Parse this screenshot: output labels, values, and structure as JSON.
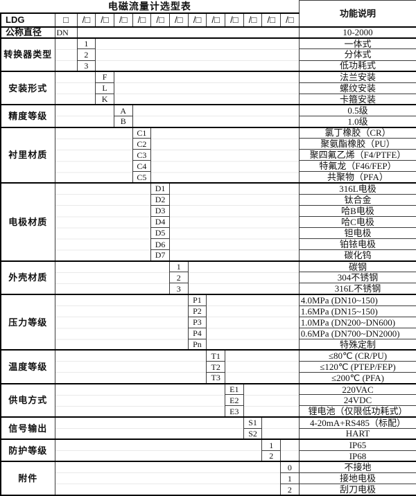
{
  "title": "电磁流量计选型表",
  "function_header": "功能说明",
  "model_row": {
    "label": "LDG",
    "first_box": "□",
    "slot": "/□"
  },
  "colors": {
    "border": "#000000",
    "background": "#ffffff",
    "text": "#111111"
  },
  "sections": [
    {
      "label": "公称直径",
      "code": "DN",
      "value": "10-2000"
    },
    {
      "label": "转换器类型",
      "rows": [
        {
          "code": "1",
          "value": "一体式"
        },
        {
          "code": "2",
          "value": "分体式"
        },
        {
          "code": "3",
          "value": "低功耗式"
        }
      ]
    },
    {
      "label": "安装形式",
      "rows": [
        {
          "code": "F",
          "value": "法兰安装"
        },
        {
          "code": "L",
          "value": "螺纹安装"
        },
        {
          "code": "K",
          "value": "卡箍安装"
        }
      ]
    },
    {
      "label": "精度等级",
      "rows": [
        {
          "code": "A",
          "value": "0.5级"
        },
        {
          "code": "B",
          "value": "1.0级"
        }
      ]
    },
    {
      "label": "衬里材质",
      "rows": [
        {
          "code": "C1",
          "value": "氯丁橡胶（CR）"
        },
        {
          "code": "C2",
          "value": "聚氨酯橡胶（PU）"
        },
        {
          "code": "C3",
          "value": "聚四氟乙烯（F4/PTFE）"
        },
        {
          "code": "C4",
          "value": "特氟龙（F46/FEP）"
        },
        {
          "code": "C5",
          "value": "共聚物（PFA）"
        }
      ]
    },
    {
      "label": "电极材质",
      "rows": [
        {
          "code": "D1",
          "value": "316L电极"
        },
        {
          "code": "D2",
          "value": "钛合金"
        },
        {
          "code": "D3",
          "value": "哈B电极"
        },
        {
          "code": "D4",
          "value": "哈C电极"
        },
        {
          "code": "D5",
          "value": "钽电极"
        },
        {
          "code": "D6",
          "value": "铂铱电极"
        },
        {
          "code": "D7",
          "value": "碳化钨"
        }
      ]
    },
    {
      "label": "外壳材质",
      "rows": [
        {
          "code": "1",
          "value": "碳钢"
        },
        {
          "code": "2",
          "value": "304不锈钢"
        },
        {
          "code": "3",
          "value": "316L不锈钢"
        }
      ]
    },
    {
      "label": "压力等级",
      "rows": [
        {
          "code": "P1",
          "value": "4.0MPa (DN10~150)"
        },
        {
          "code": "P2",
          "value": "1.6MPa (DN15~150)"
        },
        {
          "code": "P3",
          "value": "1.0MPa (DN200~DN600)"
        },
        {
          "code": "P4",
          "value": "0.6MPa (DN700~DN2000)"
        },
        {
          "code": "Pn",
          "value": "特殊定制"
        }
      ]
    },
    {
      "label": "温度等级",
      "rows": [
        {
          "code": "T1",
          "value": "≤80℃ (CR/PU)"
        },
        {
          "code": "T2",
          "value": "≤120℃ (PTEP/FEP)"
        },
        {
          "code": "T3",
          "value": "≤200℃ (PFA)"
        }
      ]
    },
    {
      "label": "供电方式",
      "rows": [
        {
          "code": "E1",
          "value": "220VAC"
        },
        {
          "code": "E2",
          "value": "24VDC"
        },
        {
          "code": "E3",
          "value": "锂电池（仅限低功耗式）"
        }
      ]
    },
    {
      "label": "信号输出",
      "rows": [
        {
          "code": "S1",
          "value": "4-20mA+RS485（标配）"
        },
        {
          "code": "S2",
          "value": "HART"
        }
      ]
    },
    {
      "label": "防护等级",
      "rows": [
        {
          "code": "1",
          "value": "IP65"
        },
        {
          "code": "2",
          "value": "IP68"
        }
      ]
    },
    {
      "label": "附件",
      "rows": [
        {
          "code": "0",
          "value": "不接地"
        },
        {
          "code": "1",
          "value": "接地电极"
        },
        {
          "code": "2",
          "value": "刮刀电极"
        }
      ]
    }
  ]
}
